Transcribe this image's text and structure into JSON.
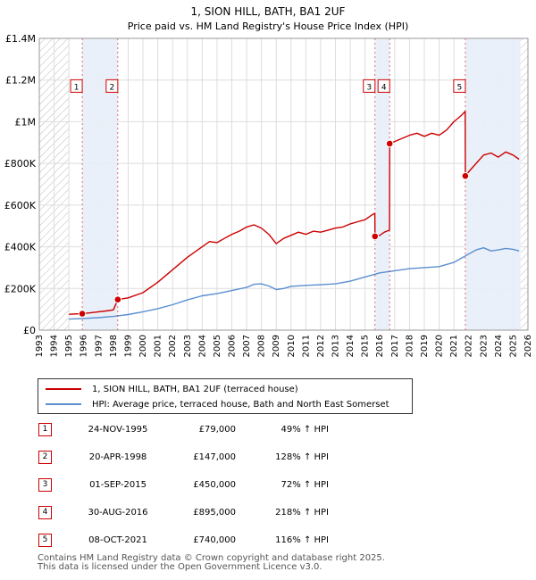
{
  "chart_data": {
    "type": "line",
    "title": "1, SION HILL, BATH, BA1 2UF",
    "subtitle": "Price paid vs. HM Land Registry's House Price Index (HPI)",
    "xlim": [
      1993,
      2026
    ],
    "ylim": [
      0,
      1400000
    ],
    "x_ticks": [
      "1993",
      "1994",
      "1995",
      "1996",
      "1997",
      "1998",
      "1999",
      "2000",
      "2001",
      "2002",
      "2003",
      "2004",
      "2005",
      "2006",
      "2007",
      "2008",
      "2009",
      "2010",
      "2011",
      "2012",
      "2013",
      "2014",
      "2015",
      "2016",
      "2017",
      "2018",
      "2019",
      "2020",
      "2021",
      "2022",
      "2023",
      "2024",
      "2025",
      "2026"
    ],
    "y_ticks": [
      {
        "value": 0,
        "label": "£0"
      },
      {
        "value": 200000,
        "label": "£200K"
      },
      {
        "value": 400000,
        "label": "£400K"
      },
      {
        "value": 600000,
        "label": "£600K"
      },
      {
        "value": 800000,
        "label": "£800K"
      },
      {
        "value": 1000000,
        "label": "£1M"
      },
      {
        "value": 1200000,
        "label": "£1.2M"
      },
      {
        "value": 1400000,
        "label": "£1.4M"
      }
    ],
    "hatched_before": 1995.0,
    "hatched_after": 2025.5,
    "shaded_periods": [
      [
        1995.9,
        1998.3
      ],
      [
        2015.67,
        2016.66
      ],
      [
        2021.77,
        2025.5
      ]
    ],
    "series": [
      {
        "name": "1, SION HILL, BATH, BA1 2UF (terraced house)",
        "color": "#cc0000",
        "x": [
          1995.0,
          1995.9,
          1996.5,
          1997.0,
          1997.5,
          1998.0,
          1998.3,
          1999.0,
          2000.0,
          2001.0,
          2002.0,
          2003.0,
          2004.0,
          2004.5,
          2005.0,
          2005.5,
          2006.0,
          2006.5,
          2007.0,
          2007.5,
          2008.0,
          2008.5,
          2009.0,
          2009.5,
          2010.0,
          2010.5,
          2011.0,
          2011.5,
          2012.0,
          2012.5,
          2013.0,
          2013.5,
          2014.0,
          2014.5,
          2015.0,
          2015.5,
          2015.66,
          2015.67,
          2016.0,
          2016.3,
          2016.65,
          2016.66,
          2017.0,
          2017.5,
          2018.0,
          2018.5,
          2019.0,
          2019.5,
          2020.0,
          2020.5,
          2021.0,
          2021.5,
          2021.76,
          2021.77,
          2022.0,
          2022.5,
          2023.0,
          2023.5,
          2024.0,
          2024.5,
          2025.0,
          2025.4
        ],
        "values": [
          76000,
          79000,
          84000,
          88000,
          92000,
          97000,
          147000,
          155000,
          180000,
          230000,
          290000,
          350000,
          400000,
          425000,
          420000,
          440000,
          460000,
          475000,
          495000,
          505000,
          490000,
          460000,
          415000,
          440000,
          455000,
          470000,
          460000,
          475000,
          470000,
          480000,
          490000,
          495000,
          510000,
          520000,
          530000,
          555000,
          560000,
          450000,
          455000,
          470000,
          480000,
          895000,
          905000,
          920000,
          935000,
          945000,
          930000,
          945000,
          935000,
          960000,
          1000000,
          1030000,
          1050000,
          740000,
          760000,
          800000,
          840000,
          850000,
          830000,
          855000,
          840000,
          820000
        ]
      },
      {
        "name": "HPI: Average price, terraced house, Bath and North East Somerset",
        "color": "#5b8fd0",
        "x": [
          1995.0,
          1996.0,
          1997.0,
          1998.0,
          1999.0,
          2000.0,
          2001.0,
          2002.0,
          2003.0,
          2004.0,
          2005.0,
          2006.0,
          2007.0,
          2007.5,
          2008.0,
          2008.5,
          2009.0,
          2009.5,
          2010.0,
          2011.0,
          2012.0,
          2013.0,
          2014.0,
          2015.0,
          2016.0,
          2017.0,
          2018.0,
          2019.0,
          2020.0,
          2021.0,
          2021.5,
          2022.0,
          2022.5,
          2023.0,
          2023.5,
          2024.0,
          2024.5,
          2025.0,
          2025.4
        ],
        "values": [
          53000,
          56000,
          60000,
          66000,
          75000,
          88000,
          103000,
          122000,
          145000,
          165000,
          175000,
          190000,
          205000,
          220000,
          222000,
          212000,
          195000,
          200000,
          210000,
          215000,
          218000,
          222000,
          235000,
          255000,
          275000,
          285000,
          295000,
          300000,
          305000,
          325000,
          345000,
          365000,
          385000,
          395000,
          380000,
          385000,
          392000,
          388000,
          380000
        ]
      }
    ],
    "sales": [
      {
        "id": "1",
        "x": 1995.9,
        "value": 79000
      },
      {
        "id": "2",
        "x": 1998.3,
        "value": 147000
      },
      {
        "id": "3",
        "x": 2015.67,
        "value": 450000
      },
      {
        "id": "4",
        "x": 2016.66,
        "value": 895000
      },
      {
        "id": "5",
        "x": 2021.77,
        "value": 740000
      }
    ],
    "marker_label_value": 1150000
  },
  "legend": {
    "property_label": "1, SION HILL, BATH, BA1 2UF (terraced house)",
    "hpi_label": "HPI: Average price, terraced house, Bath and North East Somerset"
  },
  "sales_table": [
    {
      "num": "1",
      "date": "24-NOV-1995",
      "price": "£79,000",
      "hpi": "49% ↑ HPI"
    },
    {
      "num": "2",
      "date": "20-APR-1998",
      "price": "£147,000",
      "hpi": "128% ↑ HPI"
    },
    {
      "num": "3",
      "date": "01-SEP-2015",
      "price": "£450,000",
      "hpi": "72% ↑ HPI"
    },
    {
      "num": "4",
      "date": "30-AUG-2016",
      "price": "£895,000",
      "hpi": "218% ↑ HPI"
    },
    {
      "num": "5",
      "date": "08-OCT-2021",
      "price": "£740,000",
      "hpi": "116% ↑ HPI"
    }
  ],
  "footer": {
    "line1": "Contains HM Land Registry data © Crown copyright and database right 2025.",
    "line2": "This data is licensed under the Open Government Licence v3.0."
  }
}
